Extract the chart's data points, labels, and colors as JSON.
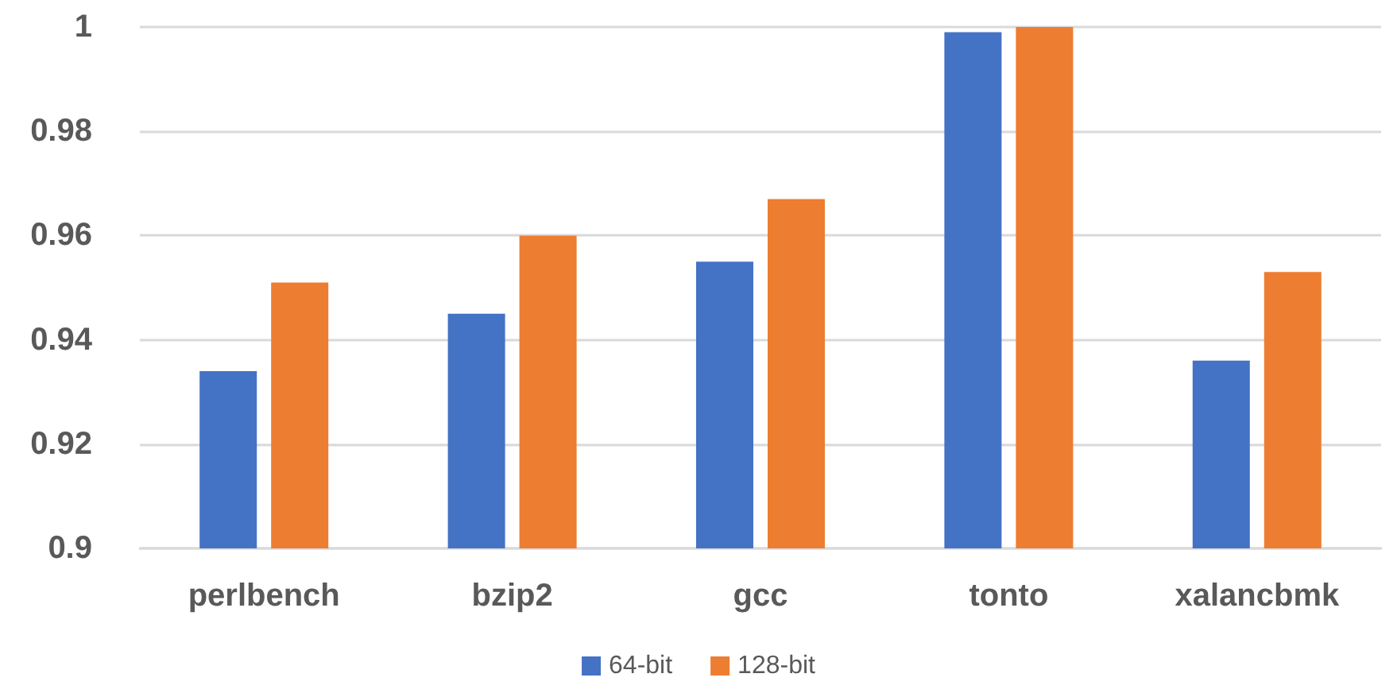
{
  "chart_data": {
    "type": "bar",
    "categories": [
      "perlbench",
      "bzip2",
      "gcc",
      "tonto",
      "xalancbmk"
    ],
    "series": [
      {
        "name": "64-bit",
        "color": "#4472c4",
        "values": [
          0.934,
          0.945,
          0.955,
          0.999,
          0.936
        ]
      },
      {
        "name": "128-bit",
        "color": "#ed7d31",
        "values": [
          0.951,
          0.96,
          0.967,
          1.0,
          0.953
        ]
      }
    ],
    "ylim": [
      0.9,
      1
    ],
    "yticks": [
      0.9,
      0.92,
      0.94,
      0.96,
      0.98,
      1
    ],
    "grid": "y",
    "legend": "bottom"
  }
}
